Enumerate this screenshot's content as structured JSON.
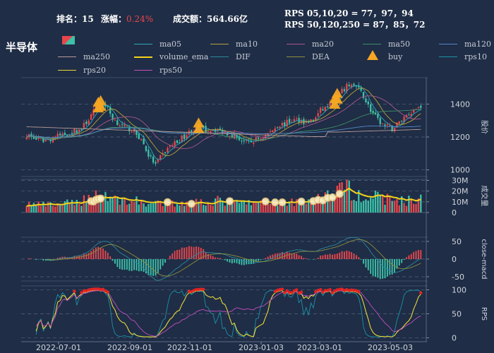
{
  "header": {
    "rank_label": "排名：",
    "rank_value": "15",
    "change_label": "涨幅：",
    "change_value": "0.24%",
    "turnover_label": "成交额：",
    "turnover_value": "564.66亿",
    "rps_line1": "RPS 05,10,20 = 77，97，94",
    "rps_line2": "RPS 50,120,250 = 87，85，72"
  },
  "title": "半导体",
  "colors": {
    "background": "#1f2d46",
    "up": "#e8464b",
    "down": "#3cc1a8",
    "ma05": "#2fa9bb",
    "ma10": "#b9a23a",
    "ma20": "#a8568f",
    "ma50": "#3f8f6a",
    "ma120": "#5588c6",
    "ma250": "#b79a9a",
    "volume_ema": "#f2d31b",
    "buy": "#f5a623",
    "dif": "#2b8a9c",
    "dea": "#8d8e3f",
    "rps10": "#1a93a7",
    "rps20": "#e8d838",
    "rps50": "#c24fc1"
  },
  "legend": [
    {
      "name": "ma05",
      "label": "ma05"
    },
    {
      "name": "ma10",
      "label": "ma10"
    },
    {
      "name": "ma20",
      "label": "ma20"
    },
    {
      "name": "ma50",
      "label": "ma50"
    },
    {
      "name": "ma120",
      "label": "ma120"
    },
    {
      "name": "ma250",
      "label": "ma250"
    },
    {
      "name": "volume_ema",
      "label": "volume_ema"
    },
    {
      "name": "dif",
      "label": "DIF"
    },
    {
      "name": "dea",
      "label": "DEA"
    },
    {
      "name": "buy",
      "label": "buy"
    },
    {
      "name": "rps10",
      "label": "rps10"
    },
    {
      "name": "rps20",
      "label": "rps20"
    },
    {
      "name": "rps50",
      "label": "rps50"
    }
  ],
  "chart_data": {
    "type": "candlestick-multi-panel",
    "x_ticks": [
      "2022-07-01",
      "2022-09-01",
      "2022-11-01",
      "2023-01-03",
      "2023-03-01",
      "2023-05-03"
    ],
    "panels": {
      "price": {
        "ylabel": "股价",
        "yticks": [
          1000,
          1200,
          1400
        ],
        "ylim": [
          960,
          1560
        ]
      },
      "volume": {
        "ylabel": "成交量",
        "yticks": [
          "0",
          "10M",
          "20M",
          "30M"
        ],
        "ytick_values": [
          0,
          10,
          20,
          30
        ],
        "ylim": [
          0,
          31
        ]
      },
      "macd": {
        "ylabel": "close-macd",
        "yticks": [
          -50,
          0,
          50
        ],
        "ylim": [
          -62,
          62
        ]
      },
      "rps": {
        "ylabel": "RPS",
        "yticks": [
          0,
          50,
          100
        ],
        "ylim": [
          -8,
          108
        ]
      }
    },
    "close_keypoints": [
      [
        0,
        1215
      ],
      [
        4,
        1185
      ],
      [
        8,
        1180
      ],
      [
        13,
        1205
      ],
      [
        18,
        1225
      ],
      [
        23,
        1250
      ],
      [
        27,
        1330
      ],
      [
        30,
        1400
      ],
      [
        33,
        1395
      ],
      [
        36,
        1315
      ],
      [
        40,
        1265
      ],
      [
        44,
        1245
      ],
      [
        48,
        1185
      ],
      [
        51,
        1090
      ],
      [
        54,
        1030
      ],
      [
        57,
        1095
      ],
      [
        60,
        1145
      ],
      [
        63,
        1170
      ],
      [
        66,
        1205
      ],
      [
        69,
        1240
      ],
      [
        72,
        1255
      ],
      [
        75,
        1240
      ],
      [
        78,
        1250
      ],
      [
        81,
        1240
      ],
      [
        84,
        1225
      ],
      [
        87,
        1210
      ],
      [
        90,
        1180
      ],
      [
        93,
        1160
      ],
      [
        96,
        1185
      ],
      [
        99,
        1200
      ],
      [
        102,
        1230
      ],
      [
        105,
        1270
      ],
      [
        108,
        1280
      ],
      [
        111,
        1300
      ],
      [
        114,
        1305
      ],
      [
        117,
        1290
      ],
      [
        120,
        1300
      ],
      [
        123,
        1360
      ],
      [
        126,
        1385
      ],
      [
        129,
        1410
      ],
      [
        132,
        1475
      ],
      [
        135,
        1520
      ],
      [
        138,
        1505
      ],
      [
        141,
        1450
      ],
      [
        144,
        1360
      ],
      [
        147,
        1300
      ],
      [
        150,
        1265
      ],
      [
        153,
        1250
      ],
      [
        156,
        1290
      ],
      [
        159,
        1335
      ],
      [
        162,
        1365
      ],
      [
        165,
        1390
      ]
    ],
    "volume_keypoints": [
      [
        0,
        8
      ],
      [
        10,
        7
      ],
      [
        20,
        9
      ],
      [
        27,
        14
      ],
      [
        30,
        18
      ],
      [
        33,
        17
      ],
      [
        38,
        12
      ],
      [
        45,
        11
      ],
      [
        52,
        8
      ],
      [
        60,
        8
      ],
      [
        70,
        10
      ],
      [
        80,
        11
      ],
      [
        90,
        9
      ],
      [
        100,
        9
      ],
      [
        110,
        10
      ],
      [
        120,
        12
      ],
      [
        126,
        16
      ],
      [
        130,
        19
      ],
      [
        133,
        22
      ],
      [
        136,
        20
      ],
      [
        142,
        16
      ],
      [
        150,
        13
      ],
      [
        158,
        11
      ],
      [
        165,
        12
      ]
    ],
    "buy_signal_indices": [
      30,
      31,
      72,
      129,
      130
    ],
    "volume_marker_indices": [
      27,
      28,
      29,
      30,
      31,
      59,
      69,
      85,
      100,
      104,
      107,
      115,
      120,
      122,
      124,
      126,
      128,
      131
    ],
    "bar_count": 166
  }
}
